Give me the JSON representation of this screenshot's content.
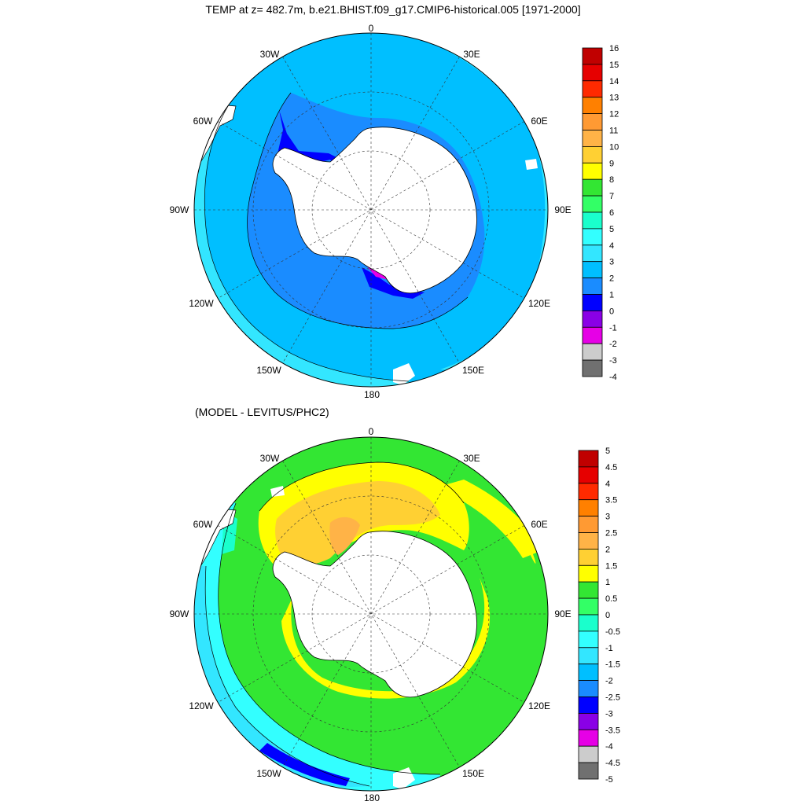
{
  "top_panel": {
    "title": "TEMP at z= 482.7m, b.e21.BHIST.f09_g17.CMIP6-historical.005 [1971-2000]",
    "longitude_labels": {
      "n": "0",
      "ne": "30E",
      "e_upper": "60E",
      "e": "90E",
      "e_lower": "120E",
      "se": "150E",
      "s": "180",
      "sw": "150W",
      "w_lower": "120W",
      "w": "90W",
      "w_upper": "60W",
      "nw": "30W"
    },
    "colorbar": {
      "labels": [
        "16",
        "15",
        "14",
        "13",
        "12",
        "11",
        "10",
        "9",
        "8",
        "7",
        "6",
        "5",
        "4",
        "3",
        "2",
        "1",
        "0",
        "-1",
        "-2",
        "-3",
        "-4"
      ],
      "colors": [
        "#c00000",
        "#e60000",
        "#ff2a00",
        "#ff8000",
        "#ff9a33",
        "#ffb347",
        "#ffd033",
        "#ffff00",
        "#33e633",
        "#33ff66",
        "#1affcc",
        "#33ffff",
        "#33e6ff",
        "#00bfff",
        "#1a8cff",
        "#0000ff",
        "#8a00e6",
        "#e600e6",
        "#cccccc",
        "#707070"
      ]
    }
  },
  "bottom_panel": {
    "title": "(MODEL - LEVITUS/PHC2)",
    "longitude_labels": {
      "n": "0",
      "ne": "30E",
      "e_upper": "60E",
      "e": "90E",
      "e_lower": "120E",
      "se": "150E",
      "s": "180",
      "sw": "150W",
      "w_lower": "120W",
      "w": "90W",
      "w_upper": "60W",
      "nw": "30W"
    },
    "colorbar": {
      "labels": [
        "5",
        "4.5",
        "4",
        "3.5",
        "3",
        "2.5",
        "2",
        "1.5",
        "1",
        "0.5",
        "0",
        "-0.5",
        "-1",
        "-1.5",
        "-2",
        "-2.5",
        "-3",
        "-3.5",
        "-4",
        "-4.5",
        "-5"
      ],
      "colors": [
        "#c00000",
        "#e60000",
        "#ff2a00",
        "#ff8000",
        "#ff9a33",
        "#ffb347",
        "#ffd033",
        "#ffff00",
        "#33e633",
        "#33ff66",
        "#1affcc",
        "#33ffff",
        "#33e6ff",
        "#00bfff",
        "#1a8cff",
        "#0000ff",
        "#8a00e6",
        "#e600e6",
        "#cccccc",
        "#707070"
      ]
    }
  },
  "colors": {
    "land": "#ffffff",
    "coast": "#000000",
    "grid": "#333333",
    "t_2": "#1a8cff",
    "t_3": "#00bfff",
    "t_4": "#33e6ff",
    "t_1": "#0000ff",
    "t_m1": "#8a00e6",
    "t_m2": "#e600e6",
    "d_1": "#33e633",
    "d_15": "#ffff00",
    "d_2": "#ffd033",
    "d_25": "#ffb347",
    "d_3": "#ff9a33",
    "d_m05": "#1affcc",
    "d_m1": "#33ffff",
    "d_m15": "#33e6ff",
    "d_m2": "#00bfff",
    "d_m25": "#1a8cff",
    "d_m3": "#0000ff"
  }
}
